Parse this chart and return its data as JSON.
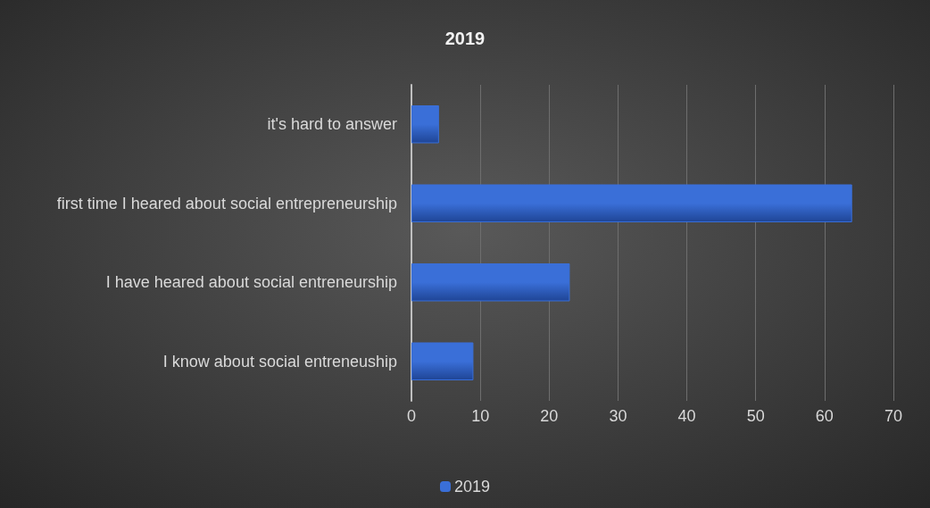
{
  "chart_data": {
    "type": "bar",
    "title": "2019",
    "orientation": "horizontal",
    "categories": [
      "it's hard to answer",
      "first time I heared about social entrepreneurship",
      "I have heared about social entreneurship",
      "I know about social entreneuship"
    ],
    "series": [
      {
        "name": "2019",
        "color": "#3a6fd8",
        "values": [
          4,
          64,
          23,
          9
        ]
      }
    ],
    "xlim": [
      0,
      70
    ],
    "xticks": [
      0,
      10,
      20,
      30,
      40,
      50,
      60,
      70
    ],
    "grid": "x",
    "legend": "bottom"
  }
}
